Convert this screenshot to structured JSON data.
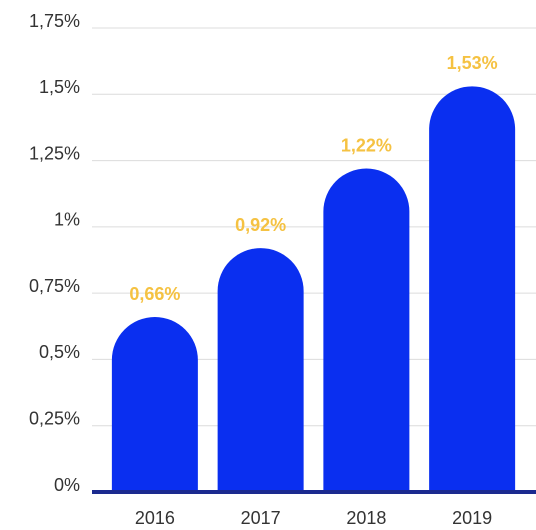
{
  "chart_data": {
    "type": "bar",
    "categories": [
      "2016",
      "2017",
      "2018",
      "2019"
    ],
    "values": [
      0.66,
      0.92,
      1.22,
      1.53
    ],
    "value_labels": [
      "0,66%",
      "0,92%",
      "1,22%",
      "1,53%"
    ],
    "color": "#0a2ff0",
    "ylim": [
      0,
      1.75
    ],
    "yticks": [
      {
        "value": 0,
        "label": "0%"
      },
      {
        "value": 0.25,
        "label": "0,25%"
      },
      {
        "value": 0.5,
        "label": "0,5%"
      },
      {
        "value": 0.75,
        "label": "0,75%"
      },
      {
        "value": 1,
        "label": "1%"
      },
      {
        "value": 1.25,
        "label": "1,25%"
      },
      {
        "value": 1.5,
        "label": "1,5%"
      },
      {
        "value": 1.75,
        "label": "1,75%"
      }
    ],
    "grid": true
  }
}
